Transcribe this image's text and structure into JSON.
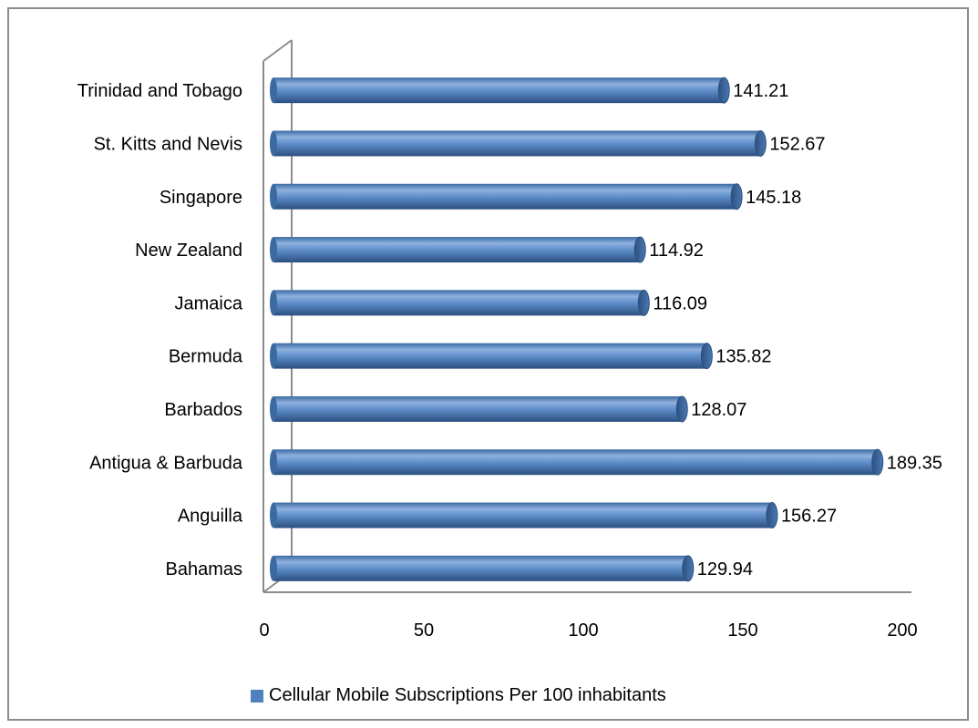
{
  "chart_data": {
    "type": "bar",
    "orientation": "horizontal",
    "categories": [
      "Bahamas",
      "Anguilla",
      "Antigua & Barbuda",
      "Barbados",
      "Bermuda",
      "Jamaica",
      "New Zealand",
      "Singapore",
      "St. Kitts and Nevis",
      "Trinidad and Tobago"
    ],
    "series": [
      {
        "name": "Cellular Mobile Subscriptions Per 100 inhabitants",
        "values": [
          129.94,
          156.27,
          189.35,
          128.07,
          135.82,
          116.09,
          114.92,
          145.18,
          152.67,
          141.21
        ],
        "data_labels": [
          "129.94",
          "156.27",
          "189.35",
          "128.07",
          "135.82",
          "116.09",
          "114.92",
          "145.18",
          "152.67",
          "141.21"
        ]
      }
    ],
    "x_ticks": [
      "0",
      "50",
      "100",
      "150",
      "200"
    ],
    "xlim": [
      0,
      200
    ],
    "grid": false,
    "legend_position": "bottom",
    "style": "3d-cylinder",
    "colors": {
      "bar": "#4f81bd",
      "bar_dark": "#2d5180",
      "bar_light": "#a9c4e6",
      "axis": "#8c8c8c"
    }
  }
}
